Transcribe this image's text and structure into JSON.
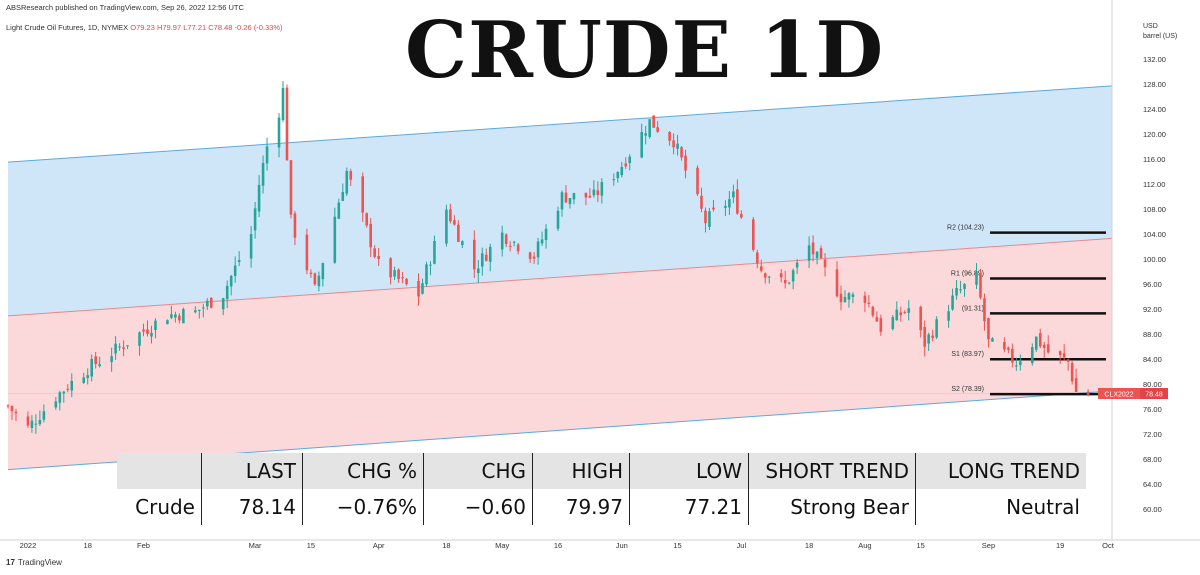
{
  "header": {
    "publisher": "ABSResearch published on TradingView.com, Sep 26, 2022 12:56 UTC",
    "symbol": "Light Crude Oil Futures, 1D, NYMEX",
    "open": "O79.23",
    "high": "H79.97",
    "low": "L77.21",
    "close": "C78.48",
    "change": "-0.26 (-0.33%)"
  },
  "title": "CRUDE 1D",
  "unit": {
    "line1": "USD",
    "line2": "barrel (US)"
  },
  "footer": {
    "logo_mark": "17",
    "logo_text": "TradingView"
  },
  "price_tag": {
    "symbol": "CLX2022",
    "value": "78.48"
  },
  "colors": {
    "up": "#26a69a",
    "down": "#ef5350",
    "upper_band": "#cfe6f9",
    "lower_band": "#fbd9db",
    "channel_line_blue": "#5aa9df",
    "channel_line_red": "#e8888d"
  },
  "chart_data": {
    "type": "candlestick",
    "y_axis": {
      "min": 56,
      "max": 136,
      "ticks": [
        "60.00",
        "64.00",
        "68.00",
        "72.00",
        "76.00",
        "80.00",
        "84.00",
        "88.00",
        "92.00",
        "96.00",
        "100.00",
        "104.00",
        "108.00",
        "112.00",
        "116.00",
        "120.00",
        "124.00",
        "128.00",
        "132.00"
      ]
    },
    "x_axis": {
      "start": "2021-12-29",
      "end": "2022-10-02",
      "labels": [
        {
          "label": "2022",
          "date": "2022-01-03"
        },
        {
          "label": "18",
          "date": "2022-01-18"
        },
        {
          "label": "Feb",
          "date": "2022-02-01"
        },
        {
          "label": "Mar",
          "date": "2022-03-01"
        },
        {
          "label": "15",
          "date": "2022-03-15"
        },
        {
          "label": "Apr",
          "date": "2022-04-01"
        },
        {
          "label": "18",
          "date": "2022-04-18"
        },
        {
          "label": "May",
          "date": "2022-05-02"
        },
        {
          "label": "16",
          "date": "2022-05-16"
        },
        {
          "label": "Jun",
          "date": "2022-06-01"
        },
        {
          "label": "15",
          "date": "2022-06-15"
        },
        {
          "label": "Jul",
          "date": "2022-07-01"
        },
        {
          "label": "18",
          "date": "2022-07-18"
        },
        {
          "label": "Aug",
          "date": "2022-08-01"
        },
        {
          "label": "15",
          "date": "2022-08-15"
        },
        {
          "label": "Sep",
          "date": "2022-09-01"
        },
        {
          "label": "19",
          "date": "2022-09-19"
        },
        {
          "label": "Oct",
          "date": "2022-10-01"
        }
      ]
    },
    "closes": [
      {
        "date": "2021-12-29",
        "close": 76.5
      },
      {
        "date": "2022-01-03",
        "close": 73.0
      },
      {
        "date": "2022-01-10",
        "close": 78.0
      },
      {
        "date": "2022-01-18",
        "close": 82.5
      },
      {
        "date": "2022-01-24",
        "close": 85.0
      },
      {
        "date": "2022-02-01",
        "close": 88.5
      },
      {
        "date": "2022-02-07",
        "close": 91.0
      },
      {
        "date": "2022-02-14",
        "close": 91.5
      },
      {
        "date": "2022-02-21",
        "close": 94.5
      },
      {
        "date": "2022-02-28",
        "close": 104.0
      },
      {
        "date": "2022-03-02",
        "close": 112.0
      },
      {
        "date": "2022-03-04",
        "close": 118.0
      },
      {
        "date": "2022-03-07",
        "close": 123.7
      },
      {
        "date": "2022-03-08",
        "close": 127.0
      },
      {
        "date": "2022-03-10",
        "close": 106.0
      },
      {
        "date": "2022-03-16",
        "close": 95.0
      },
      {
        "date": "2022-03-24",
        "close": 114.0
      },
      {
        "date": "2022-04-01",
        "close": 99.0
      },
      {
        "date": "2022-04-11",
        "close": 94.3
      },
      {
        "date": "2022-04-18",
        "close": 108.0
      },
      {
        "date": "2022-04-25",
        "close": 98.5
      },
      {
        "date": "2022-05-02",
        "close": 104.0
      },
      {
        "date": "2022-05-10",
        "close": 100.5
      },
      {
        "date": "2022-05-17",
        "close": 110.0
      },
      {
        "date": "2022-05-25",
        "close": 110.0
      },
      {
        "date": "2022-06-01",
        "close": 115.0
      },
      {
        "date": "2022-06-08",
        "close": 122.0
      },
      {
        "date": "2022-06-14",
        "close": 119.0
      },
      {
        "date": "2022-06-22",
        "close": 106.0
      },
      {
        "date": "2022-06-29",
        "close": 110.0
      },
      {
        "date": "2022-07-06",
        "close": 98.5
      },
      {
        "date": "2022-07-12",
        "close": 95.8
      },
      {
        "date": "2022-07-18",
        "close": 102.0
      },
      {
        "date": "2022-07-26",
        "close": 94.0
      },
      {
        "date": "2022-08-01",
        "close": 93.9
      },
      {
        "date": "2022-08-05",
        "close": 89.0
      },
      {
        "date": "2022-08-12",
        "close": 92.1
      },
      {
        "date": "2022-08-16",
        "close": 86.5
      },
      {
        "date": "2022-08-24",
        "close": 94.5
      },
      {
        "date": "2022-08-29",
        "close": 97.0
      },
      {
        "date": "2022-09-01",
        "close": 86.6
      },
      {
        "date": "2022-09-08",
        "close": 83.5
      },
      {
        "date": "2022-09-13",
        "close": 87.3
      },
      {
        "date": "2022-09-16",
        "close": 85.1
      },
      {
        "date": "2022-09-21",
        "close": 83.5
      },
      {
        "date": "2022-09-23",
        "close": 78.7
      },
      {
        "date": "2022-09-26",
        "close": 78.48
      }
    ],
    "channel": {
      "upper": [
        {
          "date": "2021-12-29",
          "value": 115.5
        },
        {
          "date": "2022-10-02",
          "value": 127.7
        }
      ],
      "middle": [
        {
          "date": "2021-12-29",
          "value": 90.9
        },
        {
          "date": "2022-10-02",
          "value": 103.3
        }
      ],
      "lower": [
        {
          "date": "2021-12-29",
          "value": 66.3
        },
        {
          "date": "2022-10-02",
          "value": 78.9
        }
      ]
    },
    "levels": [
      {
        "label": "R2 (104.23)",
        "value": 104.23
      },
      {
        "label": "R1 (96.89)",
        "value": 96.89
      },
      {
        "label": "(91.31)",
        "value": 91.31
      },
      {
        "label": "S1 (83.97)",
        "value": 83.97
      },
      {
        "label": "S2 (78.39)",
        "value": 78.39
      }
    ],
    "table": {
      "headers": [
        "",
        "LAST",
        "CHG %",
        "CHG",
        "HIGH",
        "LOW",
        "SHORT TREND",
        "LONG TREND"
      ],
      "row": [
        "Crude",
        "78.14",
        "−0.76%",
        "−0.60",
        "79.97",
        "77.21",
        "Strong Bear",
        "Neutral"
      ]
    }
  }
}
